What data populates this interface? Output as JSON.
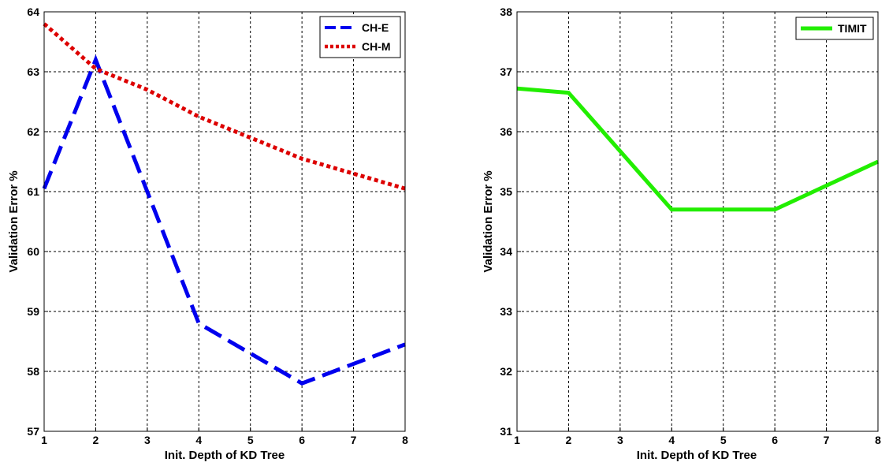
{
  "chart_data": [
    {
      "type": "line",
      "title": "",
      "xlabel": "Init. Depth of KD Tree",
      "ylabel": "Validation Error %",
      "xlim": [
        1,
        8
      ],
      "ylim": [
        57,
        64
      ],
      "xticks": [
        "1",
        "2",
        "3",
        "4",
        "5",
        "6",
        "7",
        "8"
      ],
      "yticks": [
        "57",
        "58",
        "59",
        "60",
        "61",
        "62",
        "63",
        "64"
      ],
      "grid": true,
      "legend_position": "top-right",
      "series": [
        {
          "name": "CH-E",
          "color": "#0000ee",
          "style": "dashed",
          "x": [
            1,
            2,
            4,
            6,
            8
          ],
          "y": [
            61.05,
            63.2,
            58.8,
            57.8,
            58.45
          ]
        },
        {
          "name": "CH-M",
          "color": "#dd0000",
          "style": "dotted",
          "x": [
            1,
            2,
            3,
            4,
            5,
            6,
            7,
            8
          ],
          "y": [
            63.8,
            63.05,
            62.7,
            62.25,
            61.9,
            61.55,
            61.3,
            61.05
          ]
        }
      ]
    },
    {
      "type": "line",
      "title": "",
      "xlabel": "Init. Depth of KD Tree",
      "ylabel": "Validation Error %",
      "xlim": [
        1,
        8
      ],
      "ylim": [
        31,
        38
      ],
      "xticks": [
        "1",
        "2",
        "3",
        "4",
        "5",
        "6",
        "7",
        "8"
      ],
      "yticks": [
        "31",
        "32",
        "33",
        "34",
        "35",
        "36",
        "37",
        "38"
      ],
      "grid": true,
      "legend_position": "top-right",
      "series": [
        {
          "name": "TIMIT",
          "color": "#22ee00",
          "style": "solid",
          "x": [
            1,
            2,
            4,
            6,
            8
          ],
          "y": [
            36.72,
            36.65,
            34.7,
            34.7,
            35.5
          ]
        }
      ]
    }
  ]
}
